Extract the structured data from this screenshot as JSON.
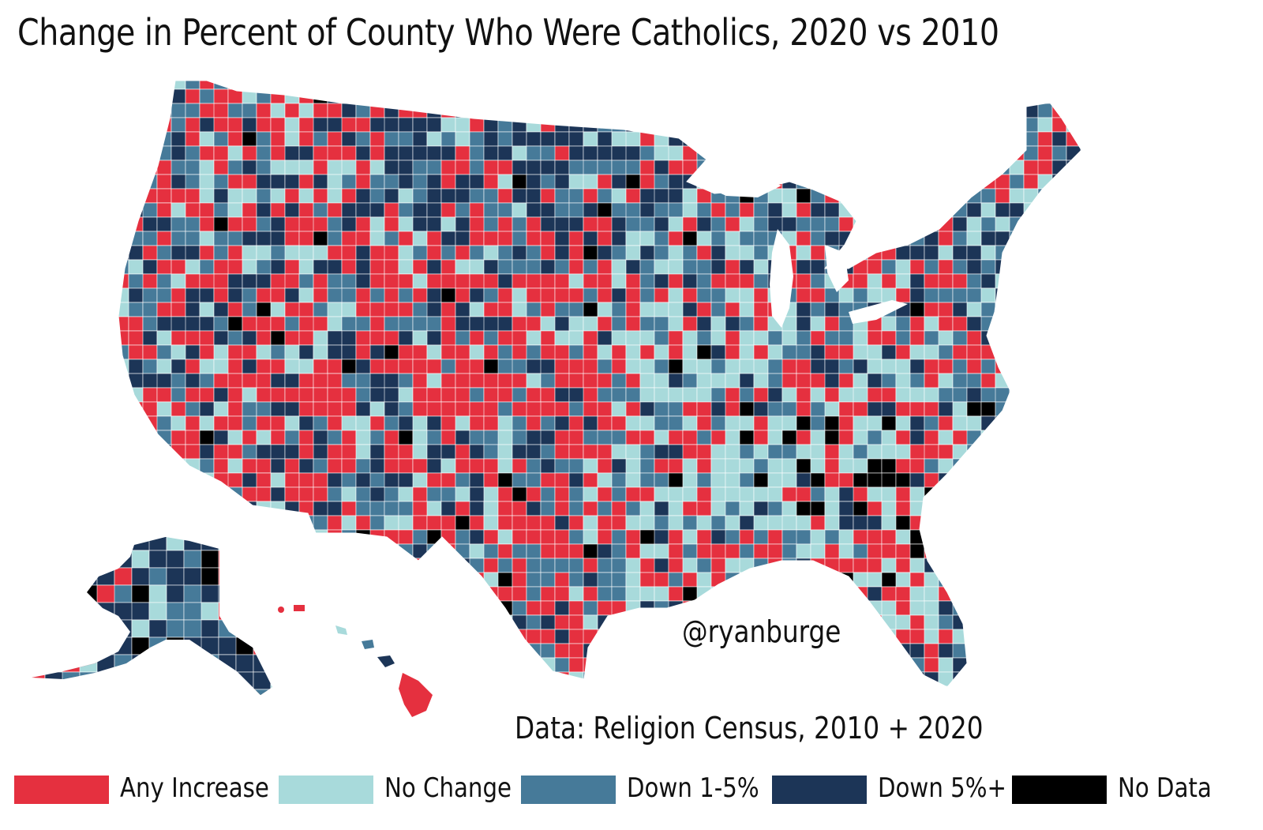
{
  "title": "Change in Percent of County Who Were Catholics, 2020 vs 2010",
  "credit": "@ryanburge",
  "source": "Data: Religion Census, 2010 + 2020",
  "legend": [
    {
      "label": "Any Increase",
      "color": "#e5303f"
    },
    {
      "label": "No Change",
      "color": "#a8dadb"
    },
    {
      "label": "Down 1-5%",
      "color": "#467a99"
    },
    {
      "label": "Down 5%+",
      "color": "#1c3557"
    },
    {
      "label": "No Data",
      "color": "#000000"
    }
  ],
  "map": {
    "regions": [
      "Contiguous US",
      "Alaska",
      "Hawaii"
    ],
    "border_color": "#ffffff"
  }
}
